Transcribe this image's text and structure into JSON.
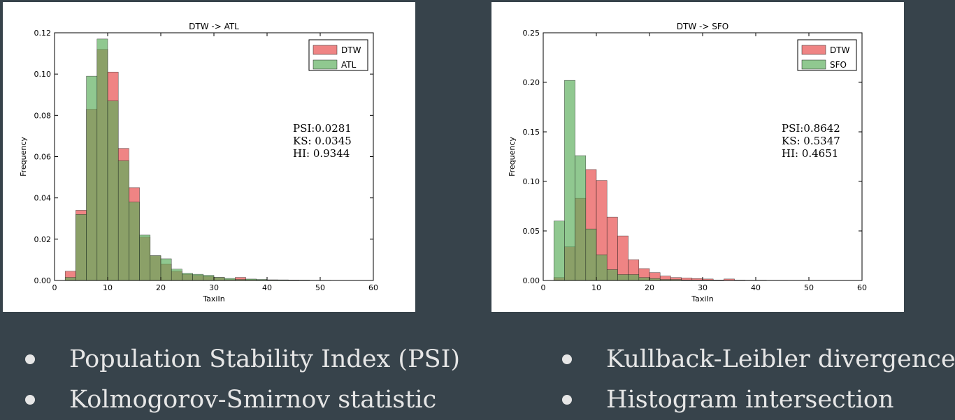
{
  "chart_data": [
    {
      "type": "bar",
      "title": "DTW -> ATL",
      "xlabel": "TaxiIn",
      "ylabel": "Frequency",
      "xlim": [
        0,
        60
      ],
      "ylim": [
        0,
        0.12
      ],
      "xticks": [
        "0",
        "10",
        "20",
        "30",
        "40",
        "50",
        "60"
      ],
      "yticks": [
        "0.00",
        "0.02",
        "0.04",
        "0.06",
        "0.08",
        "0.10",
        "0.12"
      ],
      "legend_position": "top-right",
      "bin_width": 2,
      "bin_starts": [
        2,
        4,
        6,
        8,
        10,
        12,
        14,
        16,
        18,
        20,
        22,
        24,
        26,
        28,
        30,
        32,
        34,
        36,
        38,
        40,
        42,
        44,
        46,
        48,
        50
      ],
      "series": [
        {
          "name": "DTW",
          "color": "#e8494a",
          "values": [
            0.0045,
            0.034,
            0.083,
            0.112,
            0.101,
            0.064,
            0.045,
            0.021,
            0.012,
            0.008,
            0.0045,
            0.003,
            0.0025,
            0.002,
            0.0015,
            0.0005,
            0.0015,
            0.0004,
            0.0003,
            0.0003,
            0.0002,
            0.0002,
            0.0001,
            0.0001,
            0.0001
          ]
        },
        {
          "name": "ATL",
          "color": "#5cae5c",
          "values": [
            0.0015,
            0.032,
            0.099,
            0.117,
            0.087,
            0.058,
            0.038,
            0.022,
            0.012,
            0.0105,
            0.0055,
            0.0035,
            0.003,
            0.0025,
            0.0015,
            0.001,
            0.0005,
            0.0007,
            0.0005,
            0.0003,
            0.0003,
            0.0002,
            0.0002,
            0.0001,
            0.0001
          ]
        }
      ],
      "annotation": [
        "PSI:0.0281",
        "KS: 0.0345",
        "HI: 0.9344"
      ]
    },
    {
      "type": "bar",
      "title": "DTW -> SFO",
      "xlabel": "TaxiIn",
      "ylabel": "Frequency",
      "xlim": [
        0,
        60
      ],
      "ylim": [
        0,
        0.25
      ],
      "xticks": [
        "0",
        "10",
        "20",
        "30",
        "40",
        "50",
        "60"
      ],
      "yticks": [
        "0.00",
        "0.05",
        "0.10",
        "0.15",
        "0.20",
        "0.25"
      ],
      "legend_position": "top-right",
      "bin_width": 2,
      "bin_starts": [
        2,
        4,
        6,
        8,
        10,
        12,
        14,
        16,
        18,
        20,
        22,
        24,
        26,
        28,
        30,
        32,
        34,
        36,
        38,
        40,
        42,
        44,
        46,
        48,
        50
      ],
      "series": [
        {
          "name": "DTW",
          "color": "#e8494a",
          "values": [
            0.003,
            0.034,
            0.083,
            0.112,
            0.101,
            0.064,
            0.045,
            0.021,
            0.012,
            0.008,
            0.0045,
            0.003,
            0.0025,
            0.002,
            0.0015,
            0.0005,
            0.0015,
            0.0004,
            0.0003,
            0.0003,
            0.0002,
            0.0002,
            0.0001,
            0.0001,
            0.0001
          ]
        },
        {
          "name": "SFO",
          "color": "#5cae5c",
          "values": [
            0.06,
            0.202,
            0.126,
            0.052,
            0.026,
            0.011,
            0.006,
            0.006,
            0.003,
            0.002,
            0.001,
            0.001,
            0.0005,
            0.0005,
            0.0005,
            0.0003,
            0.0002,
            0.0002,
            0.0001,
            0.0001,
            0.0001,
            0.0001,
            0,
            0,
            0
          ]
        }
      ],
      "annotation": [
        "PSI:0.8642",
        "KS: 0.5347",
        "HI: 0.4651"
      ]
    }
  ],
  "bullets_left": [
    "Population Stability Index (PSI)",
    "Kolmogorov-Smirnov statistic"
  ],
  "bullets_right": [
    "Kullback-Leibler divergence",
    "Histogram intersection"
  ]
}
